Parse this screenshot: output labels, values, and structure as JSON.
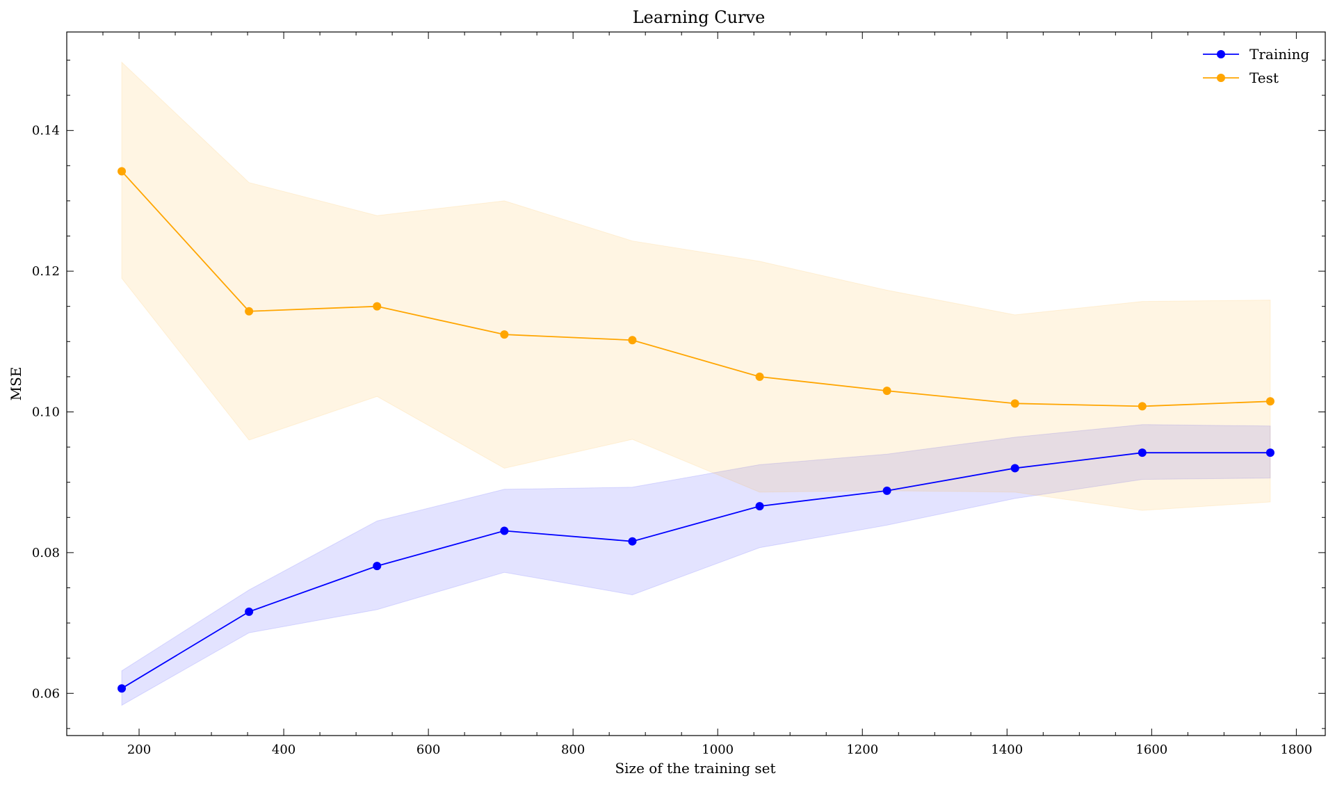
{
  "chart_data": {
    "type": "line",
    "title": "Learning Curve",
    "xlabel": "Size of the training set",
    "ylabel": "MSE",
    "xlim": [
      100,
      1840
    ],
    "ylim": [
      0.054,
      0.154
    ],
    "xticks": [
      200,
      400,
      600,
      800,
      1000,
      1200,
      1400,
      1600,
      1800
    ],
    "xtick_labels": [
      "200",
      "400",
      "600",
      "800",
      "1000",
      "1200",
      "1400",
      "1600",
      "1800"
    ],
    "yticks": [
      0.06,
      0.08,
      0.1,
      0.12,
      0.14
    ],
    "ytick_labels": [
      "0.06",
      "0.08",
      "0.10",
      "0.12",
      "0.14"
    ],
    "grid": false,
    "legend_position": "top-right",
    "x": [
      176,
      352,
      529,
      705,
      882,
      1058,
      1234,
      1411,
      1587,
      1764
    ],
    "series": [
      {
        "name": "Training",
        "color": "#0000ff",
        "values": [
          0.0607,
          0.0716,
          0.0781,
          0.0831,
          0.0816,
          0.0866,
          0.0888,
          0.092,
          0.0942,
          0.0942
        ],
        "band_lower": [
          0.0583,
          0.0686,
          0.0719,
          0.0772,
          0.074,
          0.0807,
          0.0839,
          0.0877,
          0.0904,
          0.0906
        ],
        "band_upper": [
          0.0632,
          0.0747,
          0.0845,
          0.089,
          0.0893,
          0.0925,
          0.094,
          0.0964,
          0.0982,
          0.098
        ],
        "band_color": "#0000ff"
      },
      {
        "name": "Test",
        "color": "#ffa500",
        "values": [
          0.1342,
          0.1143,
          0.115,
          0.111,
          0.1102,
          0.105,
          0.103,
          0.1012,
          0.1008,
          0.1015
        ],
        "band_lower": [
          0.119,
          0.096,
          0.1022,
          0.092,
          0.0961,
          0.0886,
          0.0888,
          0.0886,
          0.086,
          0.0872
        ],
        "band_upper": [
          0.1497,
          0.1326,
          0.1279,
          0.13,
          0.1243,
          0.1214,
          0.1173,
          0.1138,
          0.1157,
          0.1159
        ],
        "band_color": "#ffa500"
      }
    ]
  }
}
